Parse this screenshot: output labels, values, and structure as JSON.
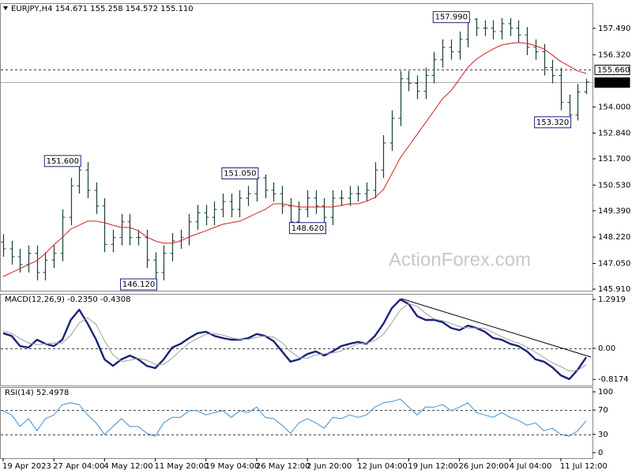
{
  "chart_data": [
    {
      "type": "ohlc",
      "title": "EURJPY,H4  154.671 155.258 154.572 155.110",
      "watermark": "ActionForex.com",
      "color": "#17403a",
      "categories": [
        "19 Apr 2023",
        null,
        null,
        null,
        null,
        null,
        "27 Apr 04:00",
        null,
        null,
        null,
        null,
        null,
        "4 May 12:00",
        null,
        null,
        null,
        null,
        null,
        "11 May 20:00",
        null,
        null,
        null,
        null,
        null,
        "19 May 04:00",
        null,
        null,
        null,
        null,
        null,
        "26 May 12:00",
        null,
        null,
        null,
        null,
        null,
        "2 Jun 20:00",
        null,
        null,
        null,
        null,
        null,
        "12 Jun 04:00",
        null,
        null,
        null,
        null,
        null,
        "19 Jun 12:00",
        null,
        null,
        null,
        null,
        null,
        "26 Jun 20:00",
        null,
        null,
        null,
        null,
        null,
        "4 Jul 04:00",
        null,
        null,
        null,
        null,
        null,
        "11 Jul 12:00",
        null,
        null,
        null
      ],
      "open": [
        148.0,
        147.7,
        147.35,
        147.0,
        147.5,
        146.65,
        147.2,
        147.5,
        149.1,
        150.5,
        151.2,
        150.3,
        149.6,
        147.9,
        148.2,
        148.9,
        148.2,
        148.2,
        147.2,
        146.65,
        147.5,
        148.05,
        148.2,
        148.9,
        149.3,
        149.1,
        149.45,
        149.8,
        149.45,
        149.95,
        150.15,
        150.85,
        150.3,
        150.15,
        149.6,
        148.9,
        149.45,
        149.95,
        149.6,
        149.1,
        149.95,
        149.95,
        150.15,
        150.15,
        150.3,
        151.2,
        152.4,
        153.5,
        155.25,
        155.05,
        154.7,
        155.4,
        156.1,
        156.65,
        156.45,
        157.0,
        157.9,
        157.5,
        157.5,
        157.35,
        157.7,
        157.5,
        157.2,
        156.65,
        156.45,
        155.75,
        155.4,
        154.2,
        153.65,
        154.671
      ],
      "high": [
        148.35,
        148.05,
        147.7,
        147.85,
        147.85,
        147.55,
        147.85,
        149.45,
        150.85,
        151.6,
        151.55,
        150.65,
        149.95,
        148.55,
        149.25,
        149.25,
        148.55,
        148.55,
        147.55,
        147.85,
        148.4,
        148.55,
        149.25,
        149.65,
        149.65,
        149.8,
        150.15,
        150.15,
        150.3,
        150.5,
        151.05,
        151.0,
        150.65,
        150.5,
        149.95,
        149.8,
        150.3,
        150.3,
        149.95,
        150.3,
        150.3,
        150.5,
        150.5,
        150.65,
        151.55,
        152.75,
        153.85,
        155.6,
        155.6,
        155.4,
        155.75,
        156.45,
        157.0,
        157.0,
        157.35,
        157.99,
        157.95,
        157.85,
        157.85,
        157.95,
        157.95,
        157.85,
        157.55,
        157.0,
        156.8,
        156.1,
        155.75,
        154.55,
        155.02,
        155.258
      ],
      "low": [
        147.35,
        147.0,
        146.65,
        146.65,
        146.3,
        146.3,
        146.85,
        147.15,
        148.75,
        150.15,
        149.95,
        149.25,
        147.55,
        147.55,
        147.85,
        147.85,
        147.85,
        146.85,
        146.12,
        146.3,
        147.15,
        147.7,
        147.85,
        148.55,
        148.75,
        148.75,
        149.1,
        149.1,
        149.1,
        149.6,
        149.8,
        149.95,
        149.8,
        149.25,
        148.65,
        148.65,
        149.1,
        149.25,
        148.62,
        148.75,
        149.6,
        149.6,
        149.8,
        149.8,
        149.95,
        150.85,
        152.05,
        153.15,
        154.7,
        154.35,
        154.35,
        155.05,
        155.75,
        156.1,
        156.1,
        156.65,
        157.15,
        157.15,
        157.0,
        157.0,
        157.15,
        156.85,
        156.3,
        156.1,
        155.4,
        155.05,
        153.85,
        153.32,
        153.4,
        154.572
      ],
      "close": [
        147.7,
        147.35,
        147.0,
        147.5,
        146.65,
        147.2,
        147.5,
        149.1,
        150.5,
        151.2,
        150.3,
        149.6,
        147.9,
        148.2,
        148.9,
        148.2,
        148.2,
        147.2,
        146.65,
        147.5,
        148.05,
        148.2,
        148.9,
        149.3,
        149.1,
        149.45,
        149.8,
        149.45,
        149.95,
        150.15,
        150.85,
        150.3,
        150.15,
        149.6,
        148.9,
        149.45,
        149.95,
        149.6,
        149.1,
        149.95,
        149.95,
        150.15,
        150.15,
        150.3,
        151.2,
        152.4,
        153.5,
        155.25,
        155.05,
        154.7,
        155.4,
        156.1,
        156.65,
        156.45,
        157.0,
        157.9,
        157.5,
        157.5,
        157.35,
        157.7,
        157.5,
        157.2,
        156.65,
        156.45,
        155.75,
        155.4,
        154.2,
        153.65,
        154.671,
        155.11
      ],
      "series": [
        {
          "color": "#d42020",
          "values": [
            146.47,
            146.65,
            146.82,
            147.0,
            147.18,
            147.5,
            147.88,
            148.2,
            148.58,
            148.75,
            148.93,
            148.93,
            148.86,
            148.75,
            148.65,
            148.65,
            148.5,
            148.23,
            148.05,
            147.95,
            147.95,
            148.05,
            148.23,
            148.37,
            148.5,
            148.65,
            148.79,
            148.86,
            148.93,
            149.1,
            149.28,
            149.45,
            149.7,
            149.7,
            149.63,
            149.56,
            149.56,
            149.56,
            149.56,
            149.56,
            149.63,
            149.7,
            149.7,
            149.81,
            149.98,
            150.33,
            151.03,
            151.74,
            152.26,
            152.79,
            153.31,
            153.84,
            154.37,
            154.72,
            155.24,
            155.77,
            156.12,
            156.37,
            156.58,
            156.75,
            156.82,
            156.86,
            156.82,
            156.72,
            156.58,
            156.3,
            156.02,
            155.81,
            155.6,
            155.49
          ]
        }
      ],
      "ylim": [
        145.84,
        158.61
      ],
      "yticks": [
        {
          "value": 157.49,
          "label": "157.490"
        },
        {
          "value": 156.32,
          "label": "156.320"
        },
        {
          "value": 154.0,
          "label": "154.000"
        },
        {
          "value": 152.84,
          "label": "152.840"
        },
        {
          "value": 151.7,
          "label": "151.700"
        },
        {
          "value": 150.53,
          "label": "150.530"
        },
        {
          "value": 149.39,
          "label": "149.390"
        },
        {
          "value": 148.22,
          "label": "148.220"
        },
        {
          "value": 147.05,
          "label": "147.050"
        },
        {
          "value": 145.91,
          "label": "145.910"
        }
      ],
      "levels": [
        {
          "value": 155.66,
          "label": "155.660",
          "style": "dashed"
        },
        {
          "value": 155.11,
          "label": "155.110",
          "style": "solid"
        }
      ],
      "annotations": [
        {
          "bar": 9,
          "value": 151.6,
          "label": "151.600"
        },
        {
          "bar": 18,
          "value": 146.12,
          "label": "146.120"
        },
        {
          "bar": 30,
          "value": 151.05,
          "label": "151.050"
        },
        {
          "bar": 38,
          "value": 148.62,
          "label": "148.620"
        },
        {
          "bar": 55,
          "value": 157.99,
          "label": "157.990"
        },
        {
          "bar": 67,
          "value": 153.32,
          "label": "153.320"
        }
      ]
    },
    {
      "type": "line",
      "title": "MACD(12,26,9) -0.2350 -0.4308",
      "series": [
        {
          "color": "#1a237e",
          "values": [
            0.4,
            0.33,
            0.06,
            0.02,
            0.23,
            0.12,
            0.06,
            0.23,
            0.75,
            1.02,
            0.65,
            0.23,
            -0.29,
            -0.46,
            -0.29,
            -0.19,
            -0.29,
            -0.46,
            -0.52,
            -0.29,
            0.02,
            0.12,
            0.27,
            0.4,
            0.44,
            0.33,
            0.27,
            0.23,
            0.23,
            0.27,
            0.38,
            0.33,
            0.19,
            -0.08,
            -0.35,
            -0.29,
            -0.15,
            -0.08,
            -0.19,
            -0.08,
            0.06,
            0.12,
            0.17,
            0.12,
            0.33,
            0.65,
            1.06,
            1.29,
            1.17,
            0.85,
            0.75,
            0.75,
            0.69,
            0.54,
            0.48,
            0.6,
            0.54,
            0.44,
            0.27,
            0.23,
            0.12,
            0.06,
            -0.08,
            -0.29,
            -0.35,
            -0.5,
            -0.71,
            -0.81,
            -0.56,
            -0.235
          ]
        },
        {
          "color": "#a0a0a0",
          "values": [
            0.45,
            0.4,
            0.26,
            0.14,
            0.1,
            0.12,
            0.14,
            0.14,
            0.35,
            0.67,
            0.81,
            0.63,
            0.2,
            -0.17,
            -0.35,
            -0.31,
            -0.26,
            -0.31,
            -0.42,
            -0.42,
            -0.26,
            -0.05,
            0.14,
            0.26,
            0.37,
            0.39,
            0.35,
            0.28,
            0.24,
            0.24,
            0.29,
            0.33,
            0.3,
            0.15,
            -0.08,
            -0.24,
            -0.26,
            -0.17,
            -0.14,
            -0.12,
            -0.07,
            0.03,
            0.12,
            0.14,
            0.21,
            0.37,
            0.68,
            1.01,
            1.18,
            1.11,
            0.92,
            0.78,
            0.73,
            0.66,
            0.57,
            0.54,
            0.54,
            0.53,
            0.42,
            0.31,
            0.21,
            0.14,
            0.03,
            -0.1,
            -0.24,
            -0.38,
            -0.48,
            -0.6,
            -0.58,
            -0.4308
          ]
        }
      ],
      "ylim": [
        -0.979,
        1.4375
      ],
      "yticks": [
        1.2919,
        {
          "value": 0,
          "label": "0.00"
        },
        -0.8174
      ],
      "levels": [
        {
          "value": 0,
          "style": "dashed"
        }
      ]
    },
    {
      "type": "line",
      "title": "RSI(14) 52.4978",
      "series": [
        {
          "color": "#3c8fd8",
          "values": [
            69,
            62,
            43,
            56,
            36,
            56,
            62,
            79,
            82,
            79,
            62,
            49,
            30,
            43,
            56,
            43,
            43,
            32,
            27,
            49,
            58,
            58,
            69,
            69,
            62,
            66,
            69,
            58,
            69,
            66,
            75,
            58,
            56,
            45,
            32,
            49,
            56,
            49,
            40,
            58,
            56,
            62,
            58,
            62,
            75,
            82,
            84,
            88,
            75,
            62,
            75,
            75,
            79,
            69,
            75,
            82,
            66,
            62,
            58,
            66,
            58,
            53,
            45,
            49,
            36,
            40,
            30,
            27,
            36,
            52.4978
          ]
        }
      ],
      "ylim": [
        -9.1,
        107.8
      ],
      "yticks": [
        100,
        70,
        30,
        0
      ],
      "levels": [
        {
          "value": 70,
          "style": "dashed"
        },
        {
          "value": 30,
          "style": "dashed"
        }
      ]
    }
  ]
}
